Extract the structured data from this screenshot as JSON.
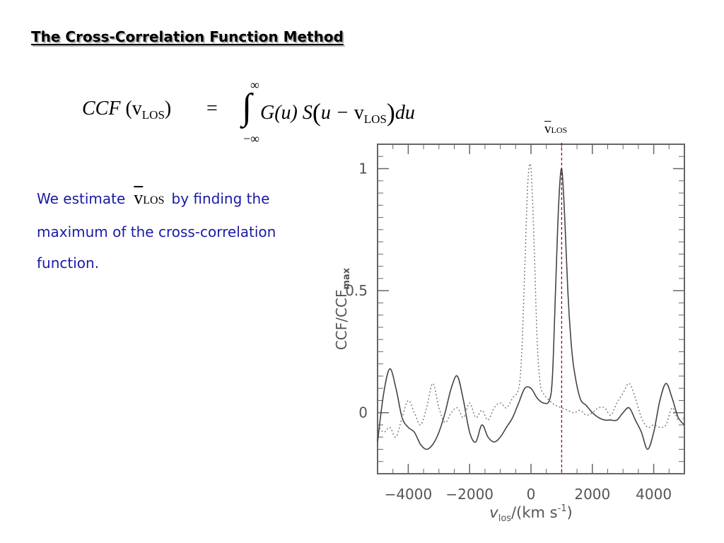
{
  "title": "The Cross-Correlation Function Method",
  "equation": {
    "lhs": "CCF",
    "v": "v",
    "los_sub": "LOS",
    "equals": "=",
    "int_upper": "∞",
    "int_lower": "−∞",
    "g_term": "G(u) S",
    "u_term": "u − ",
    "du": "du"
  },
  "annotation": {
    "symbol": "v",
    "sub": "LOS"
  },
  "body": {
    "line1_before": "We estimate",
    "symbol": "v",
    "sub": "LOS",
    "line1_after": "by finding the maximum of the cross-correlation function."
  },
  "chart_data": {
    "type": "line",
    "xlabel_main": "v",
    "xlabel_sub": "los",
    "xlabel_units": "/(km s",
    "xlabel_exp": "-1",
    "xlabel_close": ")",
    "ylabel_main": "CCF/CCF",
    "ylabel_sub": "max",
    "xlim": [
      -5000,
      5000
    ],
    "ylim": [
      -0.25,
      1.1
    ],
    "x_ticks": [
      "−4000",
      "−2000",
      "0",
      "2000",
      "4000"
    ],
    "x_tick_values": [
      -4000,
      -2000,
      0,
      2000,
      4000
    ],
    "y_ticks": [
      "0",
      "0.5",
      "1"
    ],
    "y_tick_values": [
      0,
      0.5,
      1
    ],
    "v_los_marker": 1000,
    "series": [
      {
        "style": "solid",
        "x": [
          -5000,
          -4800,
          -4600,
          -4400,
          -4200,
          -4000,
          -3800,
          -3600,
          -3400,
          -3200,
          -3000,
          -2800,
          -2600,
          -2400,
          -2200,
          -2000,
          -1800,
          -1600,
          -1400,
          -1200,
          -1000,
          -800,
          -600,
          -400,
          -200,
          0,
          200,
          400,
          600,
          700,
          800,
          900,
          1000,
          1100,
          1200,
          1300,
          1400,
          1600,
          1800,
          2000,
          2200,
          2400,
          2600,
          2800,
          3000,
          3200,
          3400,
          3600,
          3800,
          4000,
          4200,
          4400,
          4600,
          4800,
          5000
        ],
        "y": [
          -0.12,
          0.08,
          0.18,
          0.1,
          -0.02,
          -0.06,
          -0.08,
          -0.13,
          -0.15,
          -0.13,
          -0.08,
          0.0,
          0.1,
          0.15,
          0.05,
          -0.08,
          -0.12,
          -0.05,
          -0.1,
          -0.12,
          -0.1,
          -0.06,
          -0.02,
          0.04,
          0.1,
          0.1,
          0.06,
          0.04,
          0.05,
          0.15,
          0.5,
          0.85,
          1.0,
          0.8,
          0.5,
          0.3,
          0.18,
          0.06,
          0.03,
          0.0,
          -0.02,
          -0.03,
          -0.03,
          -0.03,
          0.0,
          0.02,
          -0.03,
          -0.08,
          -0.15,
          -0.08,
          0.05,
          0.12,
          0.06,
          -0.02,
          -0.05
        ]
      },
      {
        "style": "dotted",
        "x": [
          -5000,
          -4800,
          -4600,
          -4400,
          -4200,
          -4000,
          -3800,
          -3600,
          -3400,
          -3200,
          -3000,
          -2800,
          -2600,
          -2400,
          -2200,
          -2000,
          -1800,
          -1600,
          -1400,
          -1200,
          -1000,
          -800,
          -600,
          -400,
          -300,
          -200,
          -100,
          0,
          100,
          200,
          300,
          400,
          600,
          800,
          1000,
          1200,
          1400,
          1600,
          1800,
          2000,
          2200,
          2400,
          2600,
          2800,
          3000,
          3200,
          3400,
          3600,
          3800,
          4000,
          4200,
          4400,
          4600,
          4800,
          5000
        ],
        "y": [
          -0.05,
          -0.08,
          -0.06,
          -0.1,
          -0.02,
          0.05,
          0.0,
          -0.05,
          0.02,
          0.12,
          0.02,
          -0.04,
          0.0,
          0.02,
          -0.02,
          0.04,
          -0.02,
          0.01,
          -0.03,
          0.02,
          0.04,
          0.02,
          0.06,
          0.1,
          0.25,
          0.6,
          0.95,
          1.0,
          0.7,
          0.3,
          0.12,
          0.08,
          0.05,
          0.03,
          0.02,
          0.01,
          0.0,
          0.01,
          -0.01,
          0.0,
          0.02,
          0.02,
          -0.01,
          0.04,
          0.08,
          0.12,
          0.06,
          -0.02,
          -0.06,
          -0.05,
          -0.06,
          -0.05,
          0.02,
          -0.03,
          -0.02
        ]
      }
    ]
  }
}
